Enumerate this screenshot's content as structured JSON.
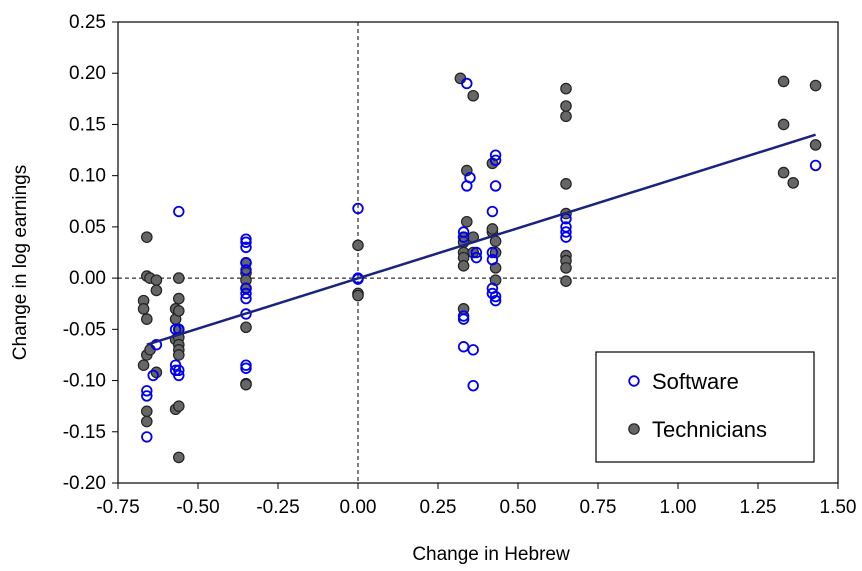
{
  "chart_data": {
    "type": "scatter",
    "title": "",
    "xlabel": "Change in Hebrew",
    "ylabel": "Change in log earnings",
    "xlim": [
      -0.75,
      1.5
    ],
    "ylim": [
      -0.2,
      0.25
    ],
    "xticks": [
      "-0.75",
      "-0.50",
      "-0.25",
      "0.00",
      "0.25",
      "0.50",
      "0.75",
      "1.00",
      "1.25",
      "1.50"
    ],
    "yticks": [
      "0.25",
      "0.20",
      "0.15",
      "0.10",
      "0.05",
      "0.00",
      "-0.05",
      "-0.10",
      "-0.15",
      "-0.20"
    ],
    "reference_lines": {
      "x": 0,
      "y": 0,
      "style": "dashed"
    },
    "fit_line": {
      "x": [
        -0.66,
        1.43
      ],
      "y": [
        -0.065,
        0.14
      ],
      "color": "#1a237e"
    },
    "legend_position": "bottom-right",
    "series": [
      {
        "name": "Software",
        "marker": "open-circle",
        "color": "#0000ee",
        "points": [
          [
            -0.66,
            -0.11
          ],
          [
            -0.66,
            -0.115
          ],
          [
            -0.66,
            -0.155
          ],
          [
            -0.64,
            -0.095
          ],
          [
            -0.63,
            -0.065
          ],
          [
            -0.57,
            -0.05
          ],
          [
            -0.57,
            -0.085
          ],
          [
            -0.57,
            -0.09
          ],
          [
            -0.56,
            -0.05
          ],
          [
            -0.56,
            -0.09
          ],
          [
            -0.56,
            -0.095
          ],
          [
            -0.56,
            0.065
          ],
          [
            -0.35,
            0.038
          ],
          [
            -0.35,
            0.035
          ],
          [
            -0.35,
            0.03
          ],
          [
            -0.35,
            0.015
          ],
          [
            -0.35,
            0.008
          ],
          [
            -0.35,
            -0.01
          ],
          [
            -0.35,
            -0.015
          ],
          [
            -0.35,
            -0.02
          ],
          [
            -0.35,
            -0.035
          ],
          [
            -0.35,
            -0.085
          ],
          [
            -0.35,
            -0.088
          ],
          [
            0.0,
            0.068
          ],
          [
            0.0,
            0.0
          ],
          [
            0.0,
            -0.001
          ],
          [
            0.33,
            0.045
          ],
          [
            0.33,
            0.04
          ],
          [
            0.33,
            -0.037
          ],
          [
            0.33,
            -0.04
          ],
          [
            0.33,
            -0.067
          ],
          [
            0.34,
            0.19
          ],
          [
            0.34,
            0.09
          ],
          [
            0.35,
            0.098
          ],
          [
            0.36,
            -0.07
          ],
          [
            0.36,
            -0.105
          ],
          [
            0.37,
            0.02
          ],
          [
            0.37,
            0.025
          ],
          [
            0.42,
            0.018
          ],
          [
            0.42,
            0.025
          ],
          [
            0.42,
            -0.01
          ],
          [
            0.42,
            -0.015
          ],
          [
            0.42,
            0.065
          ],
          [
            0.43,
            0.12
          ],
          [
            0.43,
            0.115
          ],
          [
            0.43,
            0.09
          ],
          [
            0.43,
            -0.018
          ],
          [
            0.43,
            -0.022
          ],
          [
            0.65,
            0.058
          ],
          [
            0.65,
            0.05
          ],
          [
            0.65,
            0.045
          ],
          [
            0.65,
            0.04
          ],
          [
            1.43,
            0.11
          ]
        ]
      },
      {
        "name": "Technicians",
        "marker": "filled-circle",
        "color": "#666666",
        "points": [
          [
            -0.67,
            -0.022
          ],
          [
            -0.67,
            -0.03
          ],
          [
            -0.67,
            -0.085
          ],
          [
            -0.66,
            0.04
          ],
          [
            -0.66,
            0.002
          ],
          [
            -0.66,
            -0.04
          ],
          [
            -0.66,
            -0.075
          ],
          [
            -0.66,
            -0.13
          ],
          [
            -0.66,
            -0.14
          ],
          [
            -0.65,
            0.0
          ],
          [
            -0.65,
            -0.07
          ],
          [
            -0.63,
            -0.002
          ],
          [
            -0.63,
            -0.012
          ],
          [
            -0.63,
            -0.092
          ],
          [
            -0.57,
            -0.03
          ],
          [
            -0.57,
            -0.04
          ],
          [
            -0.57,
            -0.06
          ],
          [
            -0.57,
            -0.128
          ],
          [
            -0.56,
            0.0
          ],
          [
            -0.56,
            -0.02
          ],
          [
            -0.56,
            -0.032
          ],
          [
            -0.56,
            -0.05
          ],
          [
            -0.56,
            -0.058
          ],
          [
            -0.56,
            -0.065
          ],
          [
            -0.56,
            -0.07
          ],
          [
            -0.56,
            -0.075
          ],
          [
            -0.56,
            -0.125
          ],
          [
            -0.56,
            -0.175
          ],
          [
            -0.35,
            0.015
          ],
          [
            -0.35,
            0.005
          ],
          [
            -0.35,
            -0.002
          ],
          [
            -0.35,
            -0.01
          ],
          [
            -0.35,
            -0.048
          ],
          [
            -0.35,
            -0.103
          ],
          [
            -0.35,
            -0.104
          ],
          [
            0.0,
            0.032
          ],
          [
            0.0,
            -0.015
          ],
          [
            0.0,
            -0.017
          ],
          [
            0.32,
            0.195
          ],
          [
            0.33,
            0.04
          ],
          [
            0.33,
            0.035
          ],
          [
            0.33,
            0.025
          ],
          [
            0.33,
            0.02
          ],
          [
            0.33,
            0.012
          ],
          [
            0.33,
            -0.03
          ],
          [
            0.34,
            0.105
          ],
          [
            0.34,
            0.055
          ],
          [
            0.36,
            0.178
          ],
          [
            0.36,
            0.025
          ],
          [
            0.36,
            0.04
          ],
          [
            0.42,
            0.112
          ],
          [
            0.42,
            0.045
          ],
          [
            0.42,
            0.048
          ],
          [
            0.43,
            0.036
          ],
          [
            0.43,
            0.025
          ],
          [
            0.43,
            0.01
          ],
          [
            0.43,
            -0.002
          ],
          [
            0.65,
            0.185
          ],
          [
            0.65,
            0.168
          ],
          [
            0.65,
            0.158
          ],
          [
            0.65,
            0.092
          ],
          [
            0.65,
            0.063
          ],
          [
            0.65,
            0.022
          ],
          [
            0.65,
            0.017
          ],
          [
            0.65,
            0.01
          ],
          [
            0.65,
            -0.003
          ],
          [
            1.33,
            0.192
          ],
          [
            1.33,
            0.15
          ],
          [
            1.33,
            0.103
          ],
          [
            1.36,
            0.093
          ],
          [
            1.43,
            0.188
          ],
          [
            1.43,
            0.13
          ]
        ]
      }
    ]
  }
}
